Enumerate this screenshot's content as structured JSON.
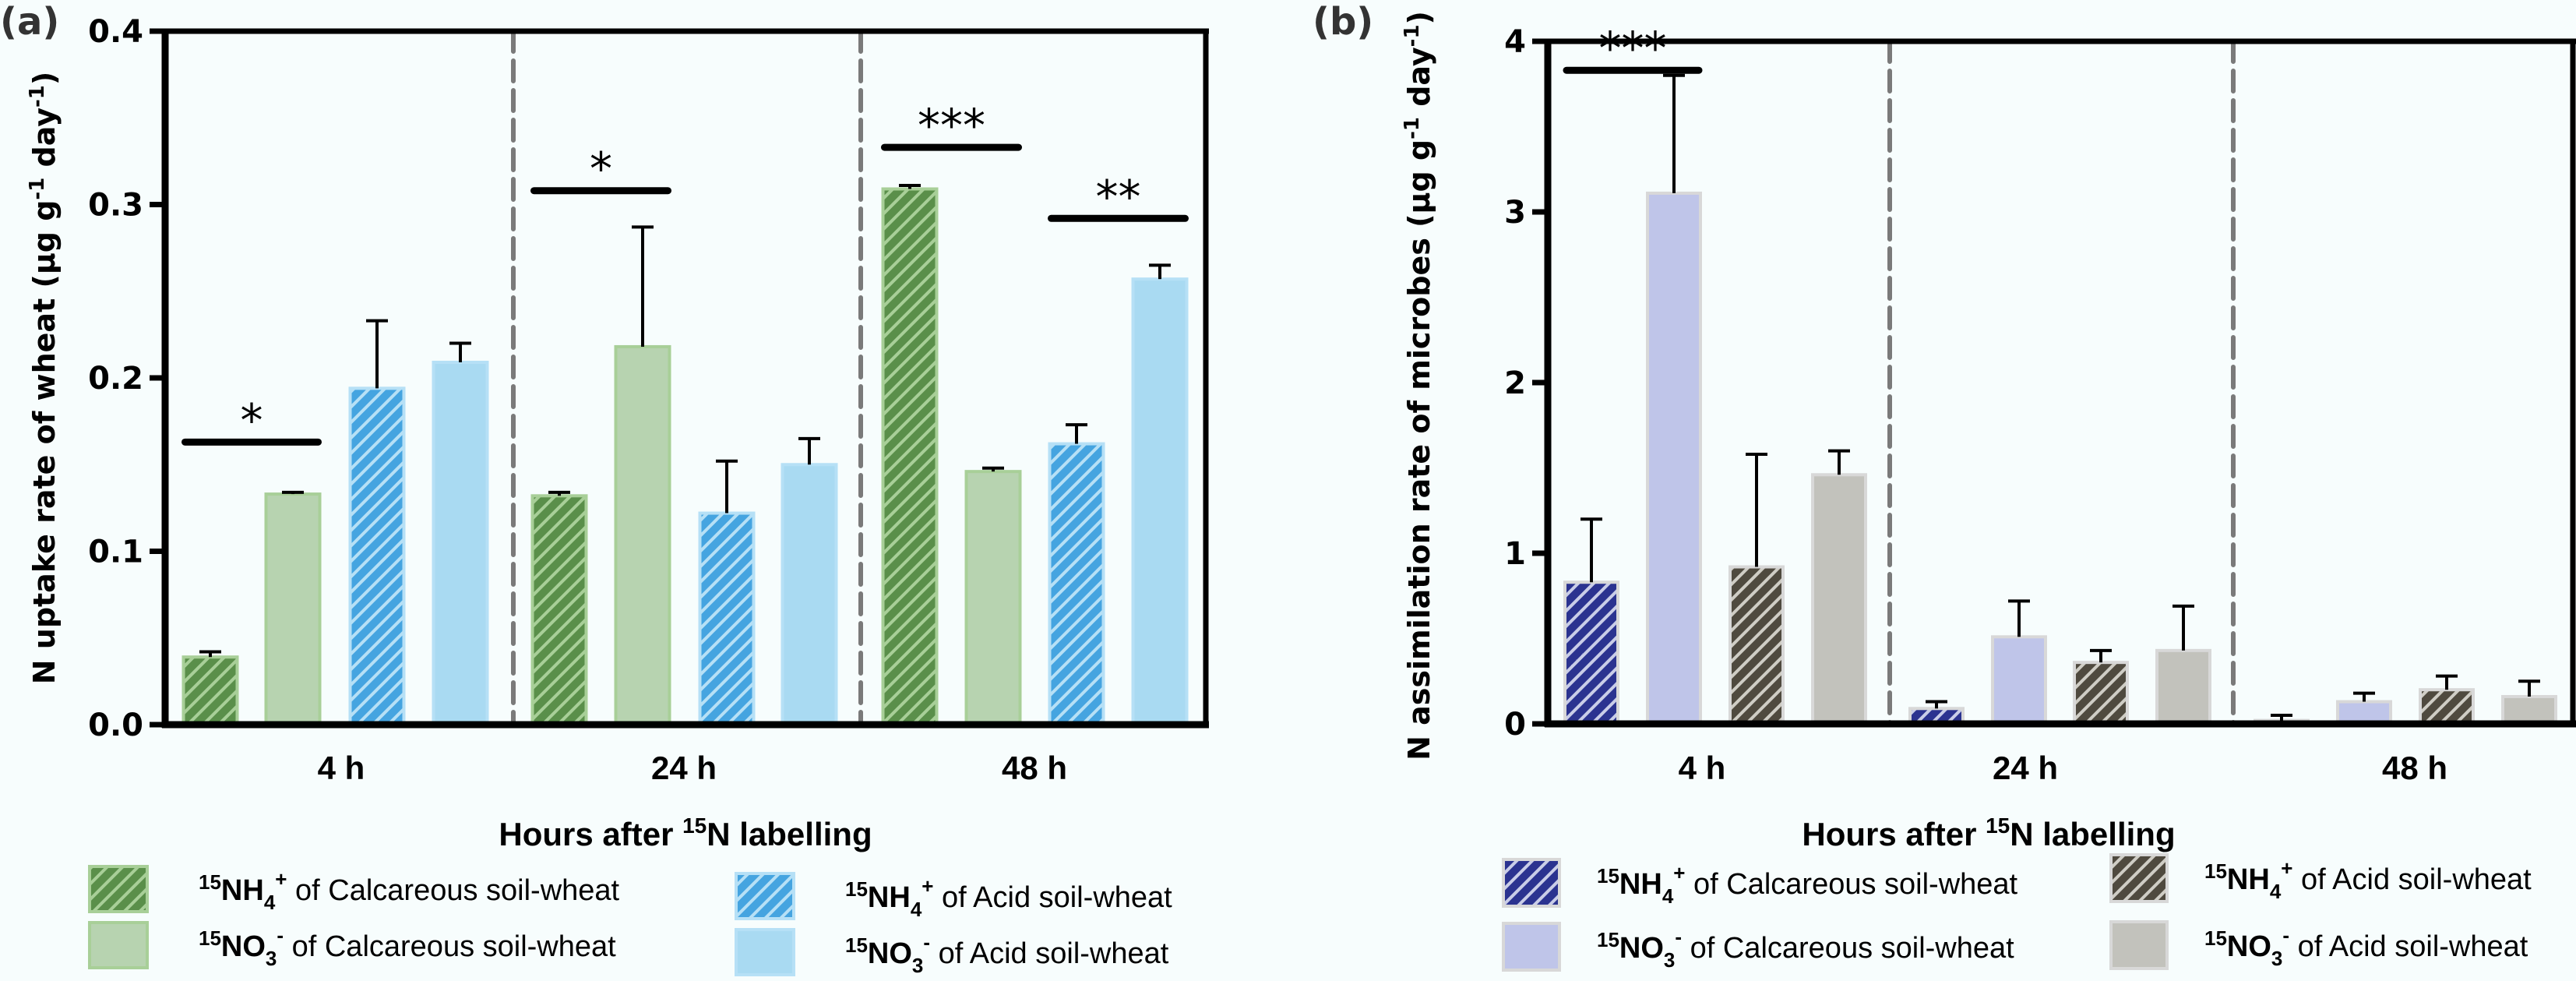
{
  "chart_data": [
    {
      "panel": "(a)",
      "type": "bar",
      "title": "",
      "xlabel": "Hours after 15N labelling",
      "xlabel_parts": {
        "pre": "Hours after ",
        "sup": "15",
        "post": "N labelling"
      },
      "ylabel": "N uptake rate of wheat (μg g-1 day-1)",
      "ylabel_parts": [
        "N uptake rate of wheat (μg g",
        "-1",
        " day",
        "-1",
        ")"
      ],
      "categories": [
        "4 h",
        "24 h",
        "48 h"
      ],
      "ylim": [
        0,
        0.4
      ],
      "yticks": [
        0.0,
        0.1,
        0.2,
        0.3,
        0.4
      ],
      "ytick_labels": [
        "0.0",
        "0.1",
        "0.2",
        "0.3",
        "0.4"
      ],
      "grid": false,
      "group_separators": "dashed",
      "series": [
        {
          "name": "15NH4+ of Calcareous soil-wheat",
          "label_parts": [
            "15",
            "NH",
            "4",
            "+",
            " of Calcareous soil-wheat"
          ],
          "color": "#5a8f4a",
          "hatch_color": "#a8cf98",
          "hatched": true,
          "values": [
            0.039,
            0.132,
            0.309
          ],
          "errors": [
            0.003,
            0.002,
            0.002
          ]
        },
        {
          "name": "15NO3- of Calcareous soil-wheat",
          "label_parts": [
            "15",
            "NO",
            "3",
            "-",
            " of Calcareous soil-wheat"
          ],
          "color": "#b7d3b0",
          "hatch_color": null,
          "hatched": false,
          "values": [
            0.133,
            0.218,
            0.146
          ],
          "errors": [
            0.001,
            0.069,
            0.002
          ]
        },
        {
          "name": "15NH4+ of Acid soil-wheat",
          "label_parts": [
            "15",
            "NH",
            "4",
            "+",
            " of Acid soil-wheat"
          ],
          "color": "#45a4e0",
          "hatch_color": "#b6e0f6",
          "hatched": true,
          "values": [
            0.194,
            0.122,
            0.162
          ],
          "errors": [
            0.039,
            0.03,
            0.011
          ]
        },
        {
          "name": "15NO3- of Acid soil-wheat",
          "label_parts": [
            "15",
            "NO",
            "3",
            "-",
            " of Acid soil-wheat"
          ],
          "color": "#a9daf2",
          "hatch_color": null,
          "hatched": false,
          "values": [
            0.209,
            0.15,
            0.257
          ],
          "errors": [
            0.011,
            0.015,
            0.008
          ]
        }
      ],
      "annotations": [
        {
          "text": "*",
          "group": 0,
          "from_series": 0,
          "to_series": 1,
          "y": 0.163
        },
        {
          "text": "*",
          "group": 1,
          "from_series": 0,
          "to_series": 1,
          "y": 0.308
        },
        {
          "text": "***",
          "group": 2,
          "from_series": 0,
          "to_series": 1,
          "y": 0.333
        },
        {
          "text": "**",
          "group": 2,
          "from_series": 2,
          "to_series": 3,
          "y": 0.292
        }
      ],
      "legend": "bottom, two columns"
    },
    {
      "panel": "(b)",
      "type": "bar",
      "title": "",
      "xlabel": "Hours after 15N labelling",
      "xlabel_parts": {
        "pre": "Hours after ",
        "sup": "15",
        "post": "N labelling"
      },
      "ylabel": "N assimilation rate of microbes (μg g-1 day-1)",
      "ylabel_parts": [
        "N assimilation rate of microbes (μg g",
        "-1",
        " day",
        "-1",
        ")"
      ],
      "categories": [
        "4 h",
        "24 h",
        "48 h"
      ],
      "ylim": [
        0,
        4
      ],
      "yticks": [
        0,
        1,
        2,
        3,
        4
      ],
      "ytick_labels": [
        "0",
        "1",
        "2",
        "3",
        "4"
      ],
      "grid": false,
      "group_separators": "dashed",
      "series": [
        {
          "name": "15NH4+ of Calcareous soil-wheat",
          "label_parts": [
            "15",
            "NH",
            "4",
            "+",
            " of Calcareous soil-wheat"
          ],
          "color": "#2b3390",
          "hatch_color": "#c9cde8",
          "hatched": true,
          "values": [
            0.83,
            0.09,
            0.02
          ],
          "errors": [
            0.37,
            0.04,
            0.03
          ]
        },
        {
          "name": "15NO3- of Calcareous soil-wheat",
          "label_parts": [
            "15",
            "NO",
            "3",
            "-",
            " of Calcareous soil-wheat"
          ],
          "color": "#bfc5e9",
          "hatch_color": null,
          "hatched": false,
          "values": [
            3.11,
            0.51,
            0.13
          ],
          "errors": [
            0.69,
            0.21,
            0.05
          ]
        },
        {
          "name": "15NH4+ of Acid soil-wheat",
          "label_parts": [
            "15",
            "NH",
            "4",
            "+",
            " of Acid soil-wheat"
          ],
          "color": "#4f4a3f",
          "hatch_color": "#cfcdc5",
          "hatched": true,
          "values": [
            0.92,
            0.36,
            0.2
          ],
          "errors": [
            0.66,
            0.07,
            0.08
          ]
        },
        {
          "name": "15NO3- of Acid soil-wheat",
          "label_parts": [
            "15",
            "NO",
            "3",
            "-",
            " of Acid soil-wheat"
          ],
          "color": "#c2c2bc",
          "hatch_color": null,
          "hatched": false,
          "values": [
            1.46,
            0.43,
            0.16
          ],
          "errors": [
            0.14,
            0.26,
            0.09
          ]
        }
      ],
      "annotations": [
        {
          "text": "***",
          "group": 0,
          "from_series": 0,
          "to_series": 1,
          "y": 3.83
        }
      ],
      "legend": "bottom, two columns"
    }
  ]
}
